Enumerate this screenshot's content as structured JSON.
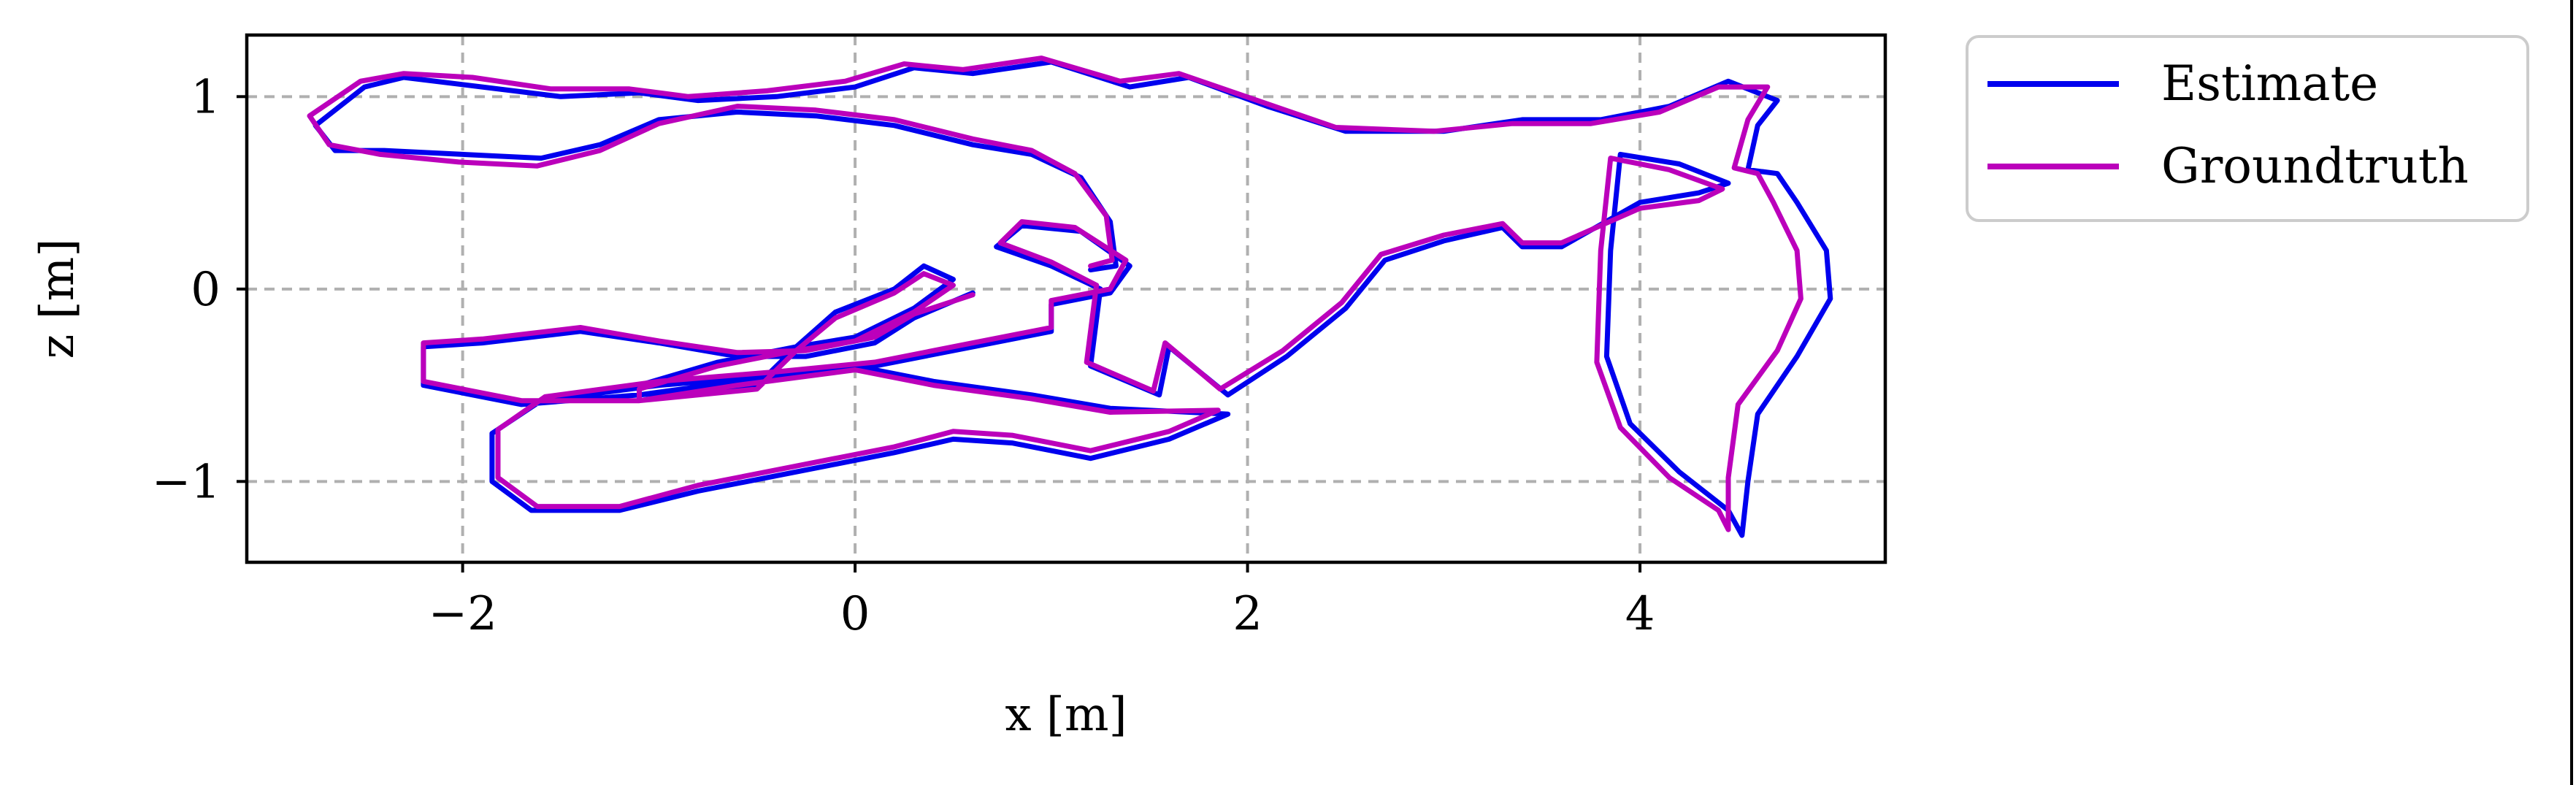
{
  "chart_data": {
    "type": "line",
    "title": "",
    "xlabel": "x [m]",
    "ylabel": "z [m]",
    "xlim": [
      -3.1,
      5.25
    ],
    "ylim": [
      -1.42,
      1.32
    ],
    "xticks": [
      -2,
      0,
      2,
      4
    ],
    "yticks": [
      -1,
      0,
      1
    ],
    "xtick_labels": [
      "−2",
      "0",
      "2",
      "4"
    ],
    "ytick_labels": [
      "−1",
      "0",
      "1"
    ],
    "grid": true,
    "legend_position": "outside-top-right",
    "series": [
      {
        "name": "Estimate",
        "color": "#0000ee",
        "points": [
          [
            0.6,
            -0.02
          ],
          [
            0.3,
            -0.15
          ],
          [
            0.1,
            -0.28
          ],
          [
            -0.25,
            -0.35
          ],
          [
            -0.6,
            -0.35
          ],
          [
            -1.0,
            -0.28
          ],
          [
            -1.4,
            -0.22
          ],
          [
            -1.9,
            -0.28
          ],
          [
            -2.2,
            -0.3
          ],
          [
            -2.2,
            -0.5
          ],
          [
            -1.7,
            -0.6
          ],
          [
            -1.1,
            -0.55
          ],
          [
            -0.5,
            -0.5
          ],
          [
            -0.3,
            -0.3
          ],
          [
            -0.1,
            -0.12
          ],
          [
            0.2,
            0.0
          ],
          [
            0.35,
            0.12
          ],
          [
            0.5,
            0.05
          ],
          [
            0.3,
            -0.1
          ],
          [
            0.0,
            -0.25
          ],
          [
            -0.3,
            -0.3
          ],
          [
            -0.7,
            -0.38
          ],
          [
            -1.1,
            -0.5
          ],
          [
            -1.1,
            -0.55
          ],
          [
            -0.6,
            -0.48
          ],
          [
            0.0,
            -0.4
          ],
          [
            0.4,
            -0.48
          ],
          [
            0.9,
            -0.55
          ],
          [
            1.3,
            -0.62
          ],
          [
            1.9,
            -0.65
          ],
          [
            1.6,
            -0.78
          ],
          [
            1.2,
            -0.88
          ],
          [
            0.8,
            -0.8
          ],
          [
            0.5,
            -0.78
          ],
          [
            0.2,
            -0.85
          ],
          [
            -0.3,
            -0.95
          ],
          [
            -0.8,
            -1.05
          ],
          [
            -1.2,
            -1.15
          ],
          [
            -1.65,
            -1.15
          ],
          [
            -1.85,
            -1.0
          ],
          [
            -1.85,
            -0.75
          ],
          [
            -1.6,
            -0.58
          ],
          [
            -1.0,
            -0.5
          ],
          [
            -0.4,
            -0.45
          ],
          [
            0.1,
            -0.4
          ],
          [
            0.6,
            -0.3
          ],
          [
            1.0,
            -0.22
          ],
          [
            1.0,
            -0.08
          ],
          [
            1.3,
            -0.02
          ],
          [
            1.4,
            0.12
          ],
          [
            1.15,
            0.3
          ],
          [
            0.85,
            0.33
          ],
          [
            0.72,
            0.22
          ],
          [
            1.0,
            0.12
          ],
          [
            1.25,
            0.0
          ],
          [
            1.2,
            -0.4
          ],
          [
            1.55,
            -0.55
          ],
          [
            1.6,
            -0.3
          ],
          [
            1.9,
            -0.55
          ],
          [
            2.2,
            -0.35
          ],
          [
            2.5,
            -0.1
          ],
          [
            2.7,
            0.15
          ],
          [
            3.0,
            0.25
          ],
          [
            3.3,
            0.32
          ],
          [
            3.4,
            0.22
          ],
          [
            3.6,
            0.22
          ],
          [
            4.0,
            0.45
          ],
          [
            4.3,
            0.5
          ],
          [
            4.45,
            0.55
          ],
          [
            4.2,
            0.65
          ],
          [
            3.9,
            0.7
          ],
          [
            3.85,
            0.2
          ],
          [
            3.83,
            -0.35
          ],
          [
            3.95,
            -0.7
          ],
          [
            4.2,
            -0.95
          ],
          [
            4.45,
            -1.15
          ],
          [
            4.52,
            -1.28
          ],
          [
            4.55,
            -1.0
          ],
          [
            4.6,
            -0.65
          ],
          [
            4.8,
            -0.35
          ],
          [
            4.97,
            -0.05
          ],
          [
            4.95,
            0.2
          ],
          [
            4.8,
            0.45
          ],
          [
            4.7,
            0.6
          ],
          [
            4.55,
            0.62
          ],
          [
            4.6,
            0.85
          ],
          [
            4.7,
            0.98
          ],
          [
            4.45,
            1.08
          ],
          [
            4.15,
            0.95
          ],
          [
            3.8,
            0.88
          ],
          [
            3.4,
            0.88
          ],
          [
            3.0,
            0.82
          ],
          [
            2.5,
            0.82
          ],
          [
            2.1,
            0.95
          ],
          [
            1.7,
            1.1
          ],
          [
            1.4,
            1.05
          ],
          [
            1.0,
            1.18
          ],
          [
            0.6,
            1.12
          ],
          [
            0.3,
            1.15
          ],
          [
            0.0,
            1.05
          ],
          [
            -0.4,
            1.0
          ],
          [
            -0.8,
            0.98
          ],
          [
            -1.1,
            1.02
          ],
          [
            -1.5,
            1.0
          ],
          [
            -1.9,
            1.05
          ],
          [
            -2.3,
            1.1
          ],
          [
            -2.5,
            1.05
          ],
          [
            -2.75,
            0.85
          ],
          [
            -2.65,
            0.72
          ],
          [
            -2.4,
            0.72
          ],
          [
            -2.0,
            0.7
          ],
          [
            -1.6,
            0.68
          ],
          [
            -1.3,
            0.75
          ],
          [
            -1.0,
            0.88
          ],
          [
            -0.6,
            0.92
          ],
          [
            -0.2,
            0.9
          ],
          [
            0.2,
            0.85
          ],
          [
            0.6,
            0.75
          ],
          [
            0.9,
            0.7
          ],
          [
            1.15,
            0.58
          ],
          [
            1.3,
            0.35
          ],
          [
            1.33,
            0.12
          ],
          [
            1.2,
            0.1
          ]
        ]
      },
      {
        "name": "Groundtruth",
        "color": "#bb00bb",
        "points": [
          [
            0.6,
            -0.03
          ],
          [
            0.3,
            -0.13
          ],
          [
            0.1,
            -0.25
          ],
          [
            -0.25,
            -0.32
          ],
          [
            -0.6,
            -0.33
          ],
          [
            -1.0,
            -0.27
          ],
          [
            -1.4,
            -0.2
          ],
          [
            -1.9,
            -0.26
          ],
          [
            -2.2,
            -0.28
          ],
          [
            -2.2,
            -0.48
          ],
          [
            -1.7,
            -0.58
          ],
          [
            -1.1,
            -0.58
          ],
          [
            -0.5,
            -0.52
          ],
          [
            -0.3,
            -0.32
          ],
          [
            -0.1,
            -0.15
          ],
          [
            0.2,
            -0.02
          ],
          [
            0.35,
            0.08
          ],
          [
            0.5,
            0.02
          ],
          [
            0.3,
            -0.12
          ],
          [
            0.0,
            -0.27
          ],
          [
            -0.3,
            -0.32
          ],
          [
            -0.7,
            -0.4
          ],
          [
            -1.1,
            -0.52
          ],
          [
            -1.1,
            -0.58
          ],
          [
            -0.6,
            -0.5
          ],
          [
            0.0,
            -0.42
          ],
          [
            0.4,
            -0.5
          ],
          [
            0.9,
            -0.57
          ],
          [
            1.3,
            -0.64
          ],
          [
            1.85,
            -0.63
          ],
          [
            1.6,
            -0.74
          ],
          [
            1.2,
            -0.84
          ],
          [
            0.8,
            -0.76
          ],
          [
            0.5,
            -0.74
          ],
          [
            0.2,
            -0.82
          ],
          [
            -0.3,
            -0.92
          ],
          [
            -0.8,
            -1.02
          ],
          [
            -1.2,
            -1.13
          ],
          [
            -1.62,
            -1.13
          ],
          [
            -1.82,
            -0.98
          ],
          [
            -1.82,
            -0.73
          ],
          [
            -1.58,
            -0.56
          ],
          [
            -1.0,
            -0.48
          ],
          [
            -0.4,
            -0.43
          ],
          [
            0.1,
            -0.38
          ],
          [
            0.6,
            -0.28
          ],
          [
            1.0,
            -0.2
          ],
          [
            1.0,
            -0.06
          ],
          [
            1.3,
            0.0
          ],
          [
            1.38,
            0.15
          ],
          [
            1.12,
            0.32
          ],
          [
            0.85,
            0.35
          ],
          [
            0.74,
            0.24
          ],
          [
            1.0,
            0.14
          ],
          [
            1.23,
            0.02
          ],
          [
            1.18,
            -0.38
          ],
          [
            1.52,
            -0.53
          ],
          [
            1.58,
            -0.28
          ],
          [
            1.86,
            -0.52
          ],
          [
            2.18,
            -0.32
          ],
          [
            2.48,
            -0.07
          ],
          [
            2.68,
            0.18
          ],
          [
            3.0,
            0.28
          ],
          [
            3.3,
            0.34
          ],
          [
            3.4,
            0.24
          ],
          [
            3.6,
            0.24
          ],
          [
            4.0,
            0.42
          ],
          [
            4.3,
            0.46
          ],
          [
            4.42,
            0.52
          ],
          [
            4.15,
            0.62
          ],
          [
            3.85,
            0.68
          ],
          [
            3.8,
            0.2
          ],
          [
            3.78,
            -0.38
          ],
          [
            3.9,
            -0.72
          ],
          [
            4.15,
            -0.98
          ],
          [
            4.4,
            -1.15
          ],
          [
            4.45,
            -1.25
          ],
          [
            4.45,
            -0.98
          ],
          [
            4.5,
            -0.6
          ],
          [
            4.7,
            -0.32
          ],
          [
            4.82,
            -0.05
          ],
          [
            4.8,
            0.2
          ],
          [
            4.68,
            0.45
          ],
          [
            4.6,
            0.6
          ],
          [
            4.48,
            0.63
          ],
          [
            4.55,
            0.88
          ],
          [
            4.65,
            1.05
          ],
          [
            4.4,
            1.05
          ],
          [
            4.1,
            0.92
          ],
          [
            3.75,
            0.86
          ],
          [
            3.35,
            0.86
          ],
          [
            2.95,
            0.82
          ],
          [
            2.45,
            0.84
          ],
          [
            2.05,
            0.98
          ],
          [
            1.65,
            1.12
          ],
          [
            1.35,
            1.08
          ],
          [
            0.95,
            1.2
          ],
          [
            0.55,
            1.14
          ],
          [
            0.25,
            1.17
          ],
          [
            -0.05,
            1.08
          ],
          [
            -0.45,
            1.03
          ],
          [
            -0.85,
            1.0
          ],
          [
            -1.15,
            1.04
          ],
          [
            -1.55,
            1.04
          ],
          [
            -1.95,
            1.1
          ],
          [
            -2.3,
            1.12
          ],
          [
            -2.52,
            1.08
          ],
          [
            -2.78,
            0.9
          ],
          [
            -2.68,
            0.75
          ],
          [
            -2.42,
            0.7
          ],
          [
            -2.02,
            0.66
          ],
          [
            -1.62,
            0.64
          ],
          [
            -1.3,
            0.72
          ],
          [
            -1.0,
            0.86
          ],
          [
            -0.6,
            0.95
          ],
          [
            -0.2,
            0.93
          ],
          [
            0.2,
            0.88
          ],
          [
            0.6,
            0.78
          ],
          [
            0.9,
            0.72
          ],
          [
            1.12,
            0.6
          ],
          [
            1.28,
            0.38
          ],
          [
            1.31,
            0.15
          ],
          [
            1.2,
            0.12
          ]
        ]
      }
    ]
  }
}
